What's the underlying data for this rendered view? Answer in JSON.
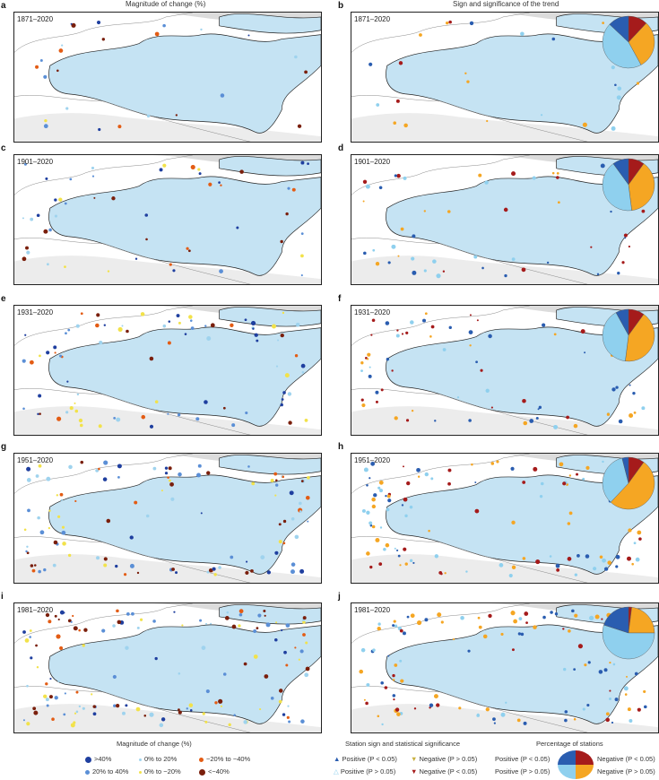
{
  "titles": {
    "left": "Magnitude of change (%)",
    "right": "Sign and significance of the trend"
  },
  "colors": {
    "sea": "#c5e3f3",
    "land": "#ffffff",
    "outside": "#dcdcdc",
    "pos_sig": "#2a5db0",
    "pos_ns": "#8fd0ee",
    "neg_ns": "#f5a623",
    "neg_sig": "#a51b1b",
    "gt40": "#1f3f9f",
    "p20_40": "#5b8fd6",
    "p0_20": "#9fd3ee",
    "n0_20": "#f2e24a",
    "n20_40": "#e35c14",
    "lt40": "#7a1f0c"
  },
  "rows": [
    {
      "left_label": "a",
      "right_label": "b",
      "period": "1871–2020",
      "pie": {
        "negative_sig": 12,
        "negative_ns": 30,
        "positive_ns": 45,
        "positive_sig": 13
      }
    },
    {
      "left_label": "c",
      "right_label": "d",
      "period": "1901–2020",
      "pie": {
        "negative_sig": 10,
        "negative_ns": 38,
        "positive_ns": 42,
        "positive_sig": 10
      }
    },
    {
      "left_label": "e",
      "right_label": "f",
      "period": "1931–2020",
      "pie": {
        "negative_sig": 10,
        "negative_ns": 42,
        "positive_ns": 40,
        "positive_sig": 8
      }
    },
    {
      "left_label": "g",
      "right_label": "h",
      "period": "1951–2020",
      "pie": {
        "negative_sig": 10,
        "negative_ns": 52,
        "positive_ns": 34,
        "positive_sig": 4
      }
    },
    {
      "left_label": "i",
      "right_label": "j",
      "period": "1981–2020",
      "pie": {
        "negative_sig": 2,
        "negative_ns": 23,
        "positive_ns": 55,
        "positive_sig": 20
      }
    }
  ],
  "legend_magnitude": {
    "title": "Magnitude of change (%)",
    "items": [
      ">40%",
      "20% to 40%",
      "0% to 20%",
      "0% to −20%",
      "−20% to −40%",
      "<−40%"
    ]
  },
  "legend_sign": {
    "title": "Station sign and statistical significance",
    "items": [
      "Positive (P < 0.05)",
      "Positive (P > 0.05)",
      "Negative (P > 0.05)",
      "Negative (P < 0.05)"
    ]
  },
  "legend_pie": {
    "title": "Percentage of stations",
    "items": [
      "Positive (P < 0.05)",
      "Positive (P > 0.05)",
      "Negative (P < 0.05)",
      "Negative (P > 0.05)"
    ]
  }
}
